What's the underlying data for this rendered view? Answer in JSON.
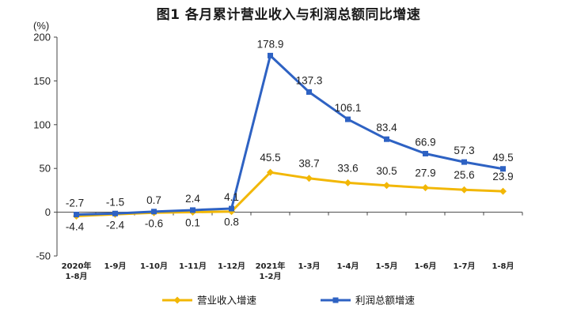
{
  "title": "图1  各月累计营业收入与利润总额同比增速",
  "chart_data": {
    "type": "line",
    "title": "图1  各月累计营业收入与利润总额同比增速",
    "ylabel": "(%)",
    "ylim": [
      -50,
      200
    ],
    "yticks": [
      -50,
      0,
      50,
      100,
      150,
      200
    ],
    "grid": false,
    "legend_position": "bottom",
    "categories": [
      [
        "2020年",
        "1-8月"
      ],
      [
        "1-9月"
      ],
      [
        "1-10月"
      ],
      [
        "1-11月"
      ],
      [
        "1-12月"
      ],
      [
        "2021年",
        "1-2月"
      ],
      [
        "1-3月"
      ],
      [
        "1-4月"
      ],
      [
        "1-5月"
      ],
      [
        "1-6月"
      ],
      [
        "1-7月"
      ],
      [
        "1-8月"
      ]
    ],
    "series": [
      {
        "name": "营业收入增速",
        "color": "#f2b705",
        "marker": "diamond",
        "values": [
          -4.4,
          -2.4,
          -0.6,
          0.1,
          0.8,
          45.5,
          38.7,
          33.6,
          30.5,
          27.9,
          25.6,
          23.9
        ],
        "labels": [
          "-4.4",
          "-2.4",
          "-0.6",
          "0.1",
          "0.8",
          "45.5",
          "38.7",
          "33.6",
          "30.5",
          "27.9",
          "25.6",
          "23.9"
        ]
      },
      {
        "name": "利润总额增速",
        "color": "#2e62c3",
        "marker": "square",
        "values": [
          -2.7,
          -1.5,
          0.7,
          2.4,
          4.1,
          178.9,
          137.3,
          106.1,
          83.4,
          66.9,
          57.3,
          49.5
        ],
        "labels": [
          "-2.7",
          "-1.5",
          "0.7",
          "2.4",
          "4.1",
          "178.9",
          "137.3",
          "106.1",
          "83.4",
          "66.9",
          "57.3",
          "49.5"
        ]
      }
    ]
  }
}
